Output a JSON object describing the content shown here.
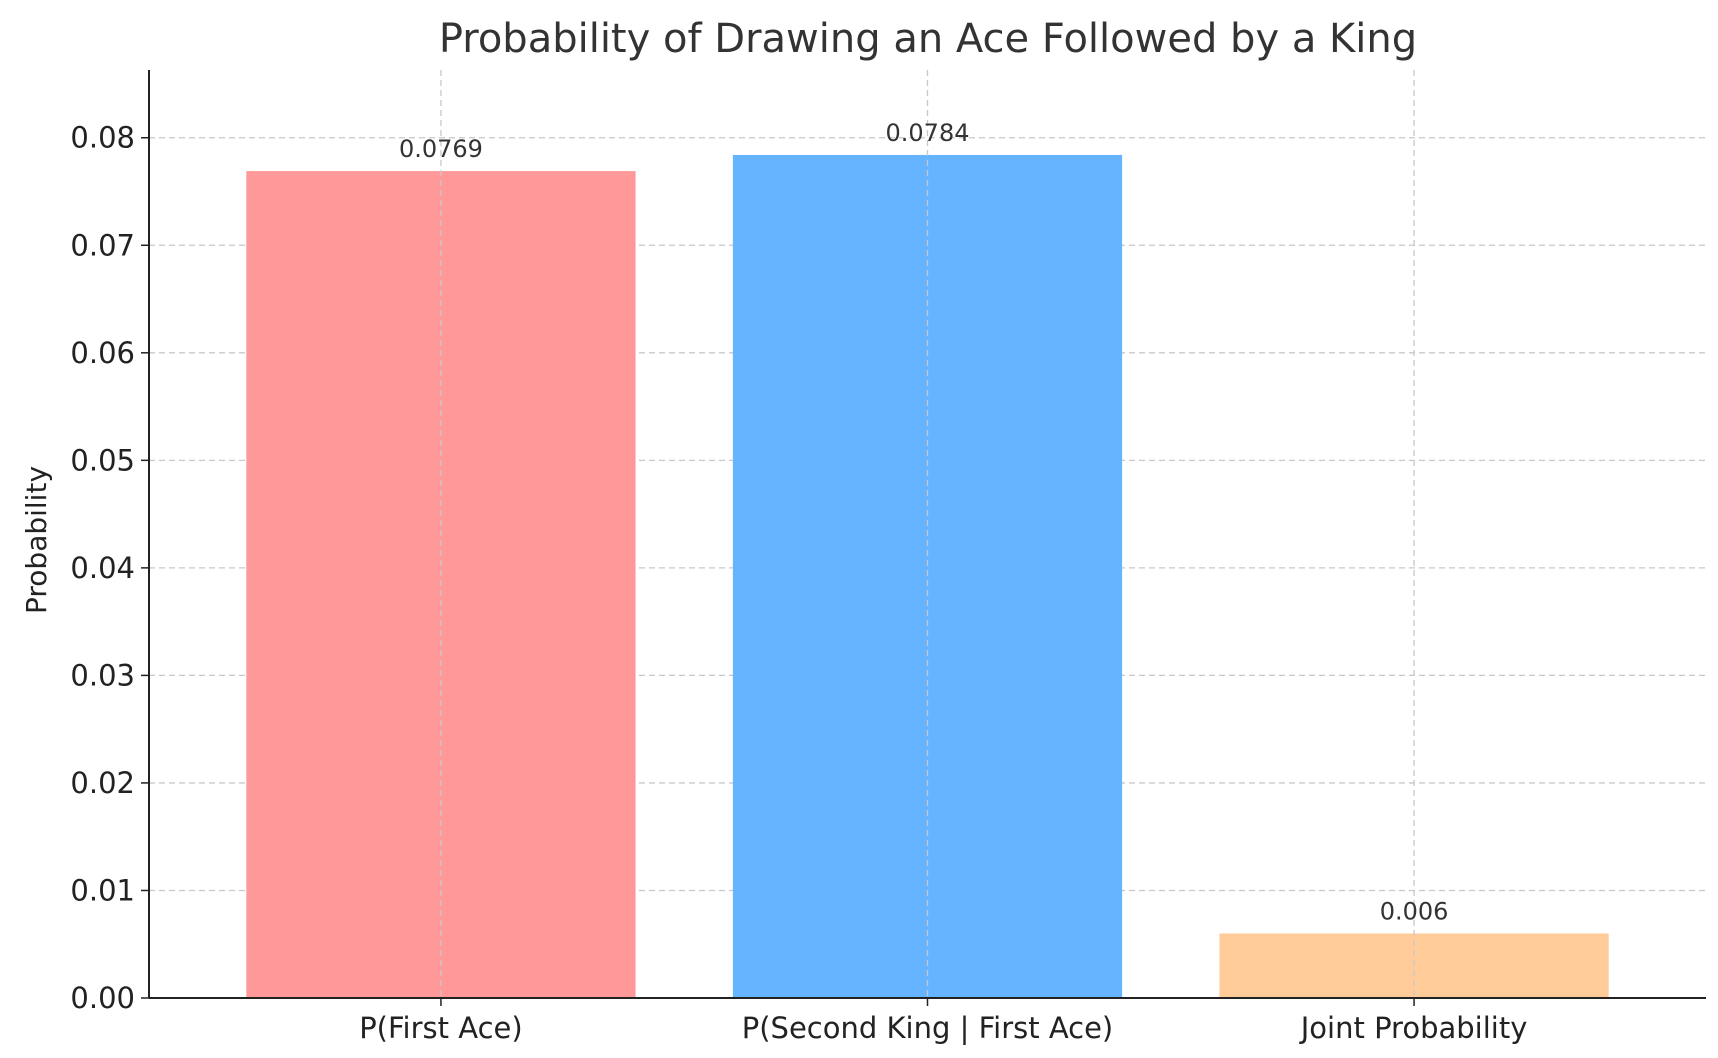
{
  "chart_data": {
    "type": "bar",
    "title": "Probability of Drawing an Ace Followed by a King",
    "xlabel": "",
    "ylabel": "Probability",
    "categories": [
      "P(First Ace)",
      "P(Second King | First Ace)",
      "Joint Probability"
    ],
    "values": [
      0.0769,
      0.0784,
      0.006
    ],
    "value_labels": [
      "0.0769",
      "0.0784",
      "0.006"
    ],
    "colors": [
      "#ff9999",
      "#66b3ff",
      "#ffcc99"
    ],
    "ylim": [
      0,
      0.0863
    ],
    "yticks": [
      0,
      0.01,
      0.02,
      0.03,
      0.04,
      0.05,
      0.06,
      0.07,
      0.08
    ],
    "ytick_labels": [
      "0.00",
      "0.01",
      "0.02",
      "0.03",
      "0.04",
      "0.05",
      "0.06",
      "0.07",
      "0.08"
    ],
    "grid": true,
    "legend": "none"
  }
}
